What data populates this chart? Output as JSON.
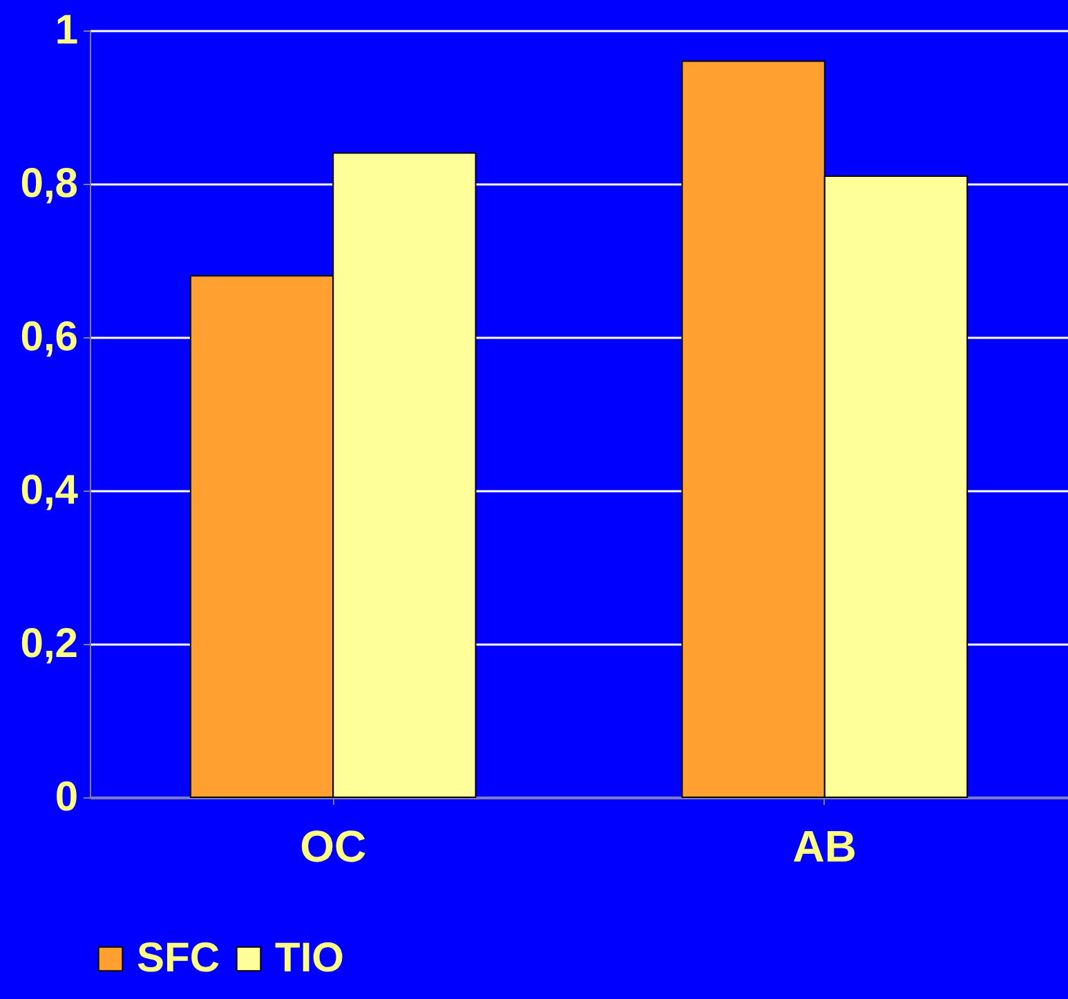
{
  "chart_data": {
    "type": "bar",
    "categories": [
      "OC",
      "AB"
    ],
    "series": [
      {
        "name": "SFC",
        "color": "#ffa030",
        "values": [
          0.68,
          0.96
        ]
      },
      {
        "name": "TIO",
        "color": "#ffff99",
        "values": [
          0.84,
          0.81
        ]
      }
    ],
    "ylim": [
      0,
      1
    ],
    "yticks": [
      {
        "value": 0,
        "label": "0"
      },
      {
        "value": 0.2,
        "label": "0,2"
      },
      {
        "value": 0.4,
        "label": "0,4"
      },
      {
        "value": 0.6,
        "label": "0,6"
      },
      {
        "value": 0.8,
        "label": "0,8"
      },
      {
        "value": 1,
        "label": "1"
      }
    ],
    "grid": "y",
    "legend": "bottom"
  }
}
